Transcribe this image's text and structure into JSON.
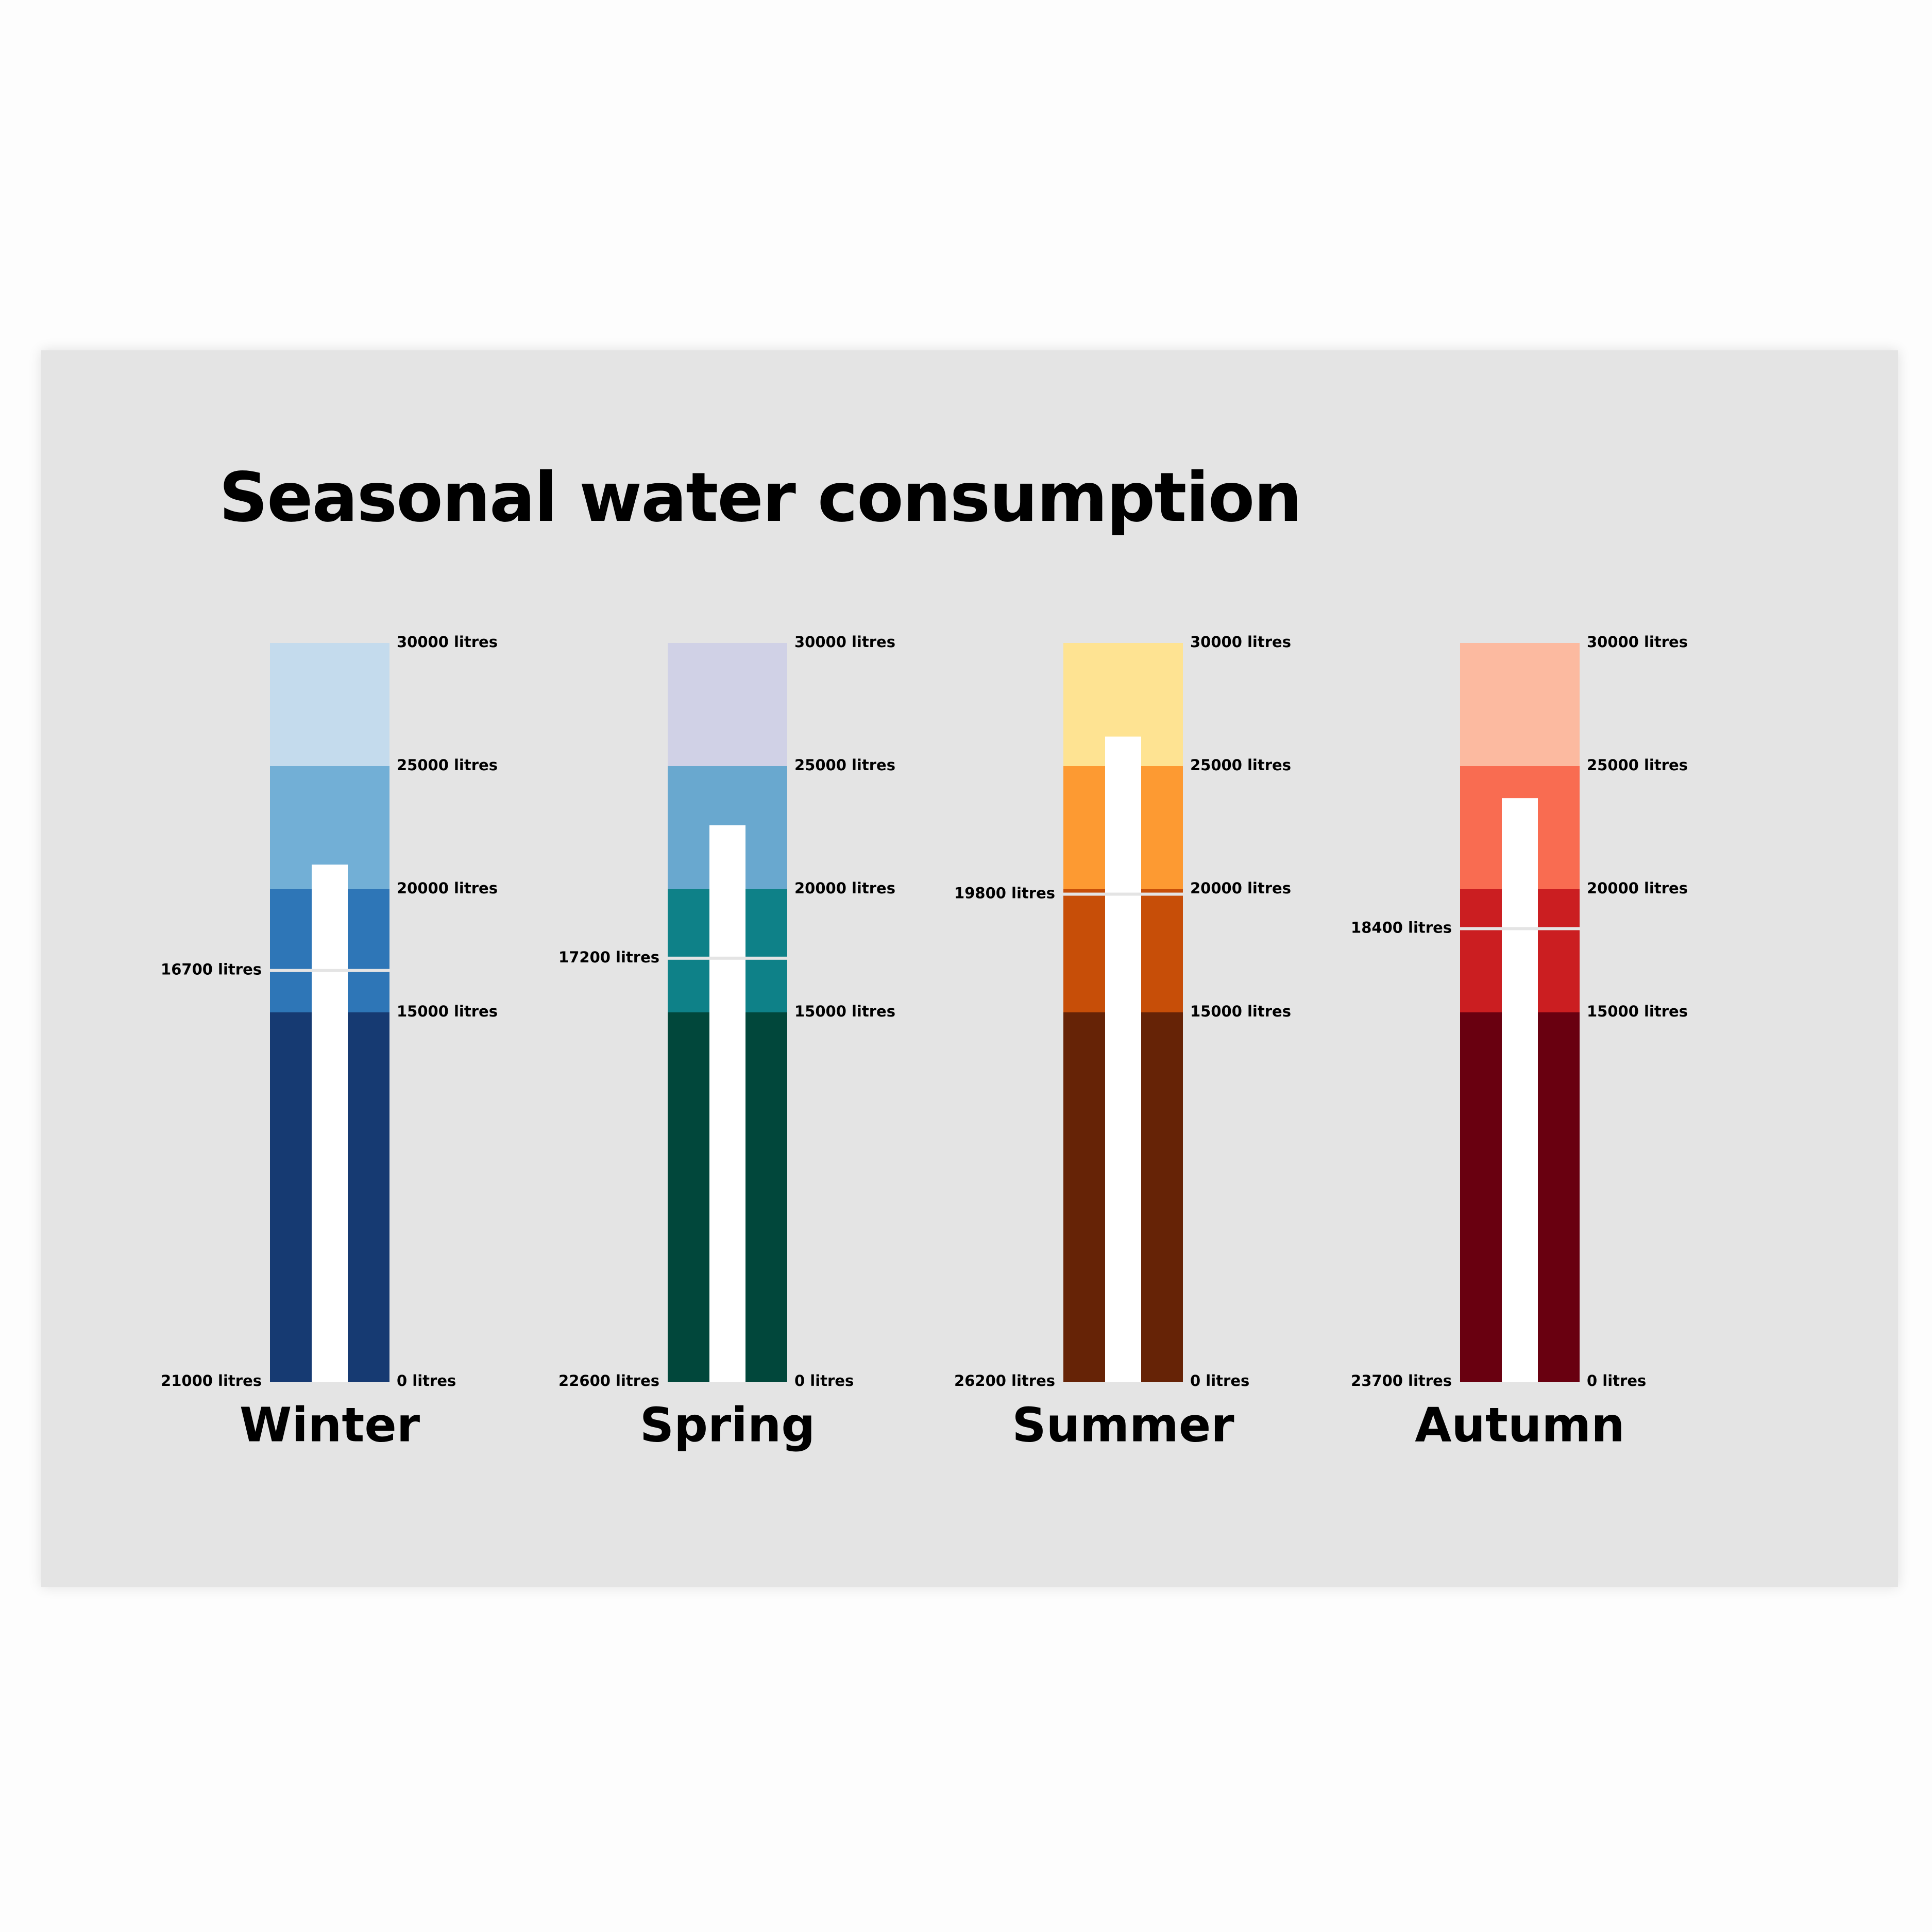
{
  "title": "Seasonal water consumption",
  "chart_data": {
    "type": "bullet",
    "title": "Seasonal water consumption",
    "orientation": "vertical",
    "unit": "litres",
    "range_thresholds": [
      0,
      15000,
      20000,
      25000,
      30000
    ],
    "tick_labels": [
      "0 litres",
      "15000 litres",
      "20000 litres",
      "25000 litres",
      "30000 litres"
    ],
    "series": [
      {
        "name": "Winter",
        "value": 21000,
        "value_label": "21000 litres",
        "target": 16700,
        "target_label": "16700 litres",
        "band_colors": [
          "#163a72",
          "#2e76b7",
          "#72afd6",
          "#c4dbed"
        ]
      },
      {
        "name": "Spring",
        "value": 22600,
        "value_label": "22600 litres",
        "target": 17200,
        "target_label": "17200 litres",
        "band_colors": [
          "#01473b",
          "#0e8188",
          "#69a8cf",
          "#d0d1e6"
        ]
      },
      {
        "name": "Summer",
        "value": 26200,
        "value_label": "26200 litres",
        "target": 19800,
        "target_label": "19800 litres",
        "band_colors": [
          "#662306",
          "#c74e08",
          "#fd9a32",
          "#fee392"
        ]
      },
      {
        "name": "Autumn",
        "value": 23700,
        "value_label": "23700 litres",
        "target": 18400,
        "target_label": "18400 litres",
        "band_colors": [
          "#690010",
          "#cb1e21",
          "#f96c51",
          "#fcbaa0"
        ]
      }
    ],
    "value_bar_color": "#ffffff",
    "target_marker_color": "#e4e4e4"
  }
}
